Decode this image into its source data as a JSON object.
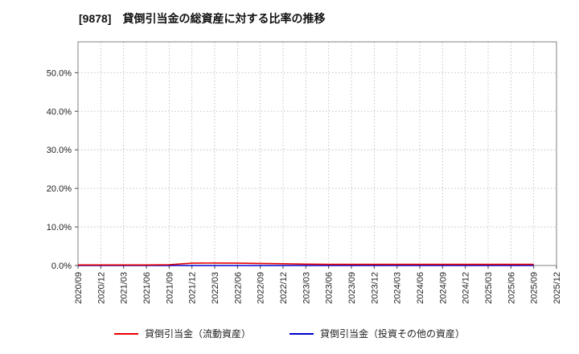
{
  "title": "[9878]　貸倒引当金の総資産に対する比率の推移",
  "chart_data": {
    "type": "line",
    "title": "[9878]　貸倒引当金の総資産に対する比率の推移",
    "x": [
      "2020/09",
      "2020/12",
      "2021/03",
      "2021/06",
      "2021/09",
      "2021/12",
      "2022/03",
      "2022/06",
      "2022/09",
      "2022/12",
      "2023/03",
      "2023/06",
      "2023/09",
      "2023/12",
      "2024/03",
      "2024/06",
      "2024/09",
      "2024/12",
      "2025/03",
      "2025/06",
      "2025/09",
      "2025/12"
    ],
    "series": [
      {
        "name": "貸倒引当金（流動資産）",
        "color": "#e60000",
        "values": [
          0.15,
          0.15,
          0.15,
          0.15,
          0.2,
          0.6,
          0.65,
          0.6,
          0.55,
          0.45,
          0.35,
          0.3,
          0.3,
          0.3,
          0.3,
          0.3,
          0.3,
          0.3,
          0.3,
          0.3,
          0.3,
          null
        ]
      },
      {
        "name": "貸倒引当金（投資その他の資産）",
        "color": "#0000cc",
        "values": [
          0.0,
          0.0,
          0.0,
          0.0,
          0.0,
          0.0,
          0.0,
          0.0,
          0.0,
          0.0,
          0.0,
          0.0,
          0.0,
          0.0,
          0.0,
          0.0,
          0.0,
          0.0,
          0.0,
          0.0,
          0.0,
          null
        ]
      }
    ],
    "ylim": [
      0,
      58
    ],
    "yticks": [
      0,
      10,
      20,
      30,
      40,
      50
    ],
    "ytick_labels": [
      "0.0%",
      "10.0%",
      "20.0%",
      "30.0%",
      "40.0%",
      "50.0%"
    ],
    "grid": true,
    "legend_position": "bottom",
    "xlabel": "",
    "ylabel": ""
  }
}
